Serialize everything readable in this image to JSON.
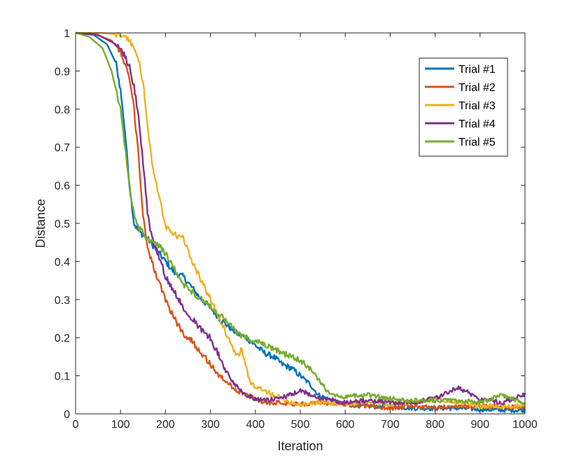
{
  "chart_data": {
    "type": "line",
    "title": "",
    "xlabel": "Iteration",
    "ylabel": "Distance",
    "xlim": [
      0,
      1000
    ],
    "ylim": [
      0,
      1
    ],
    "xticks": [
      0,
      100,
      200,
      300,
      400,
      500,
      600,
      700,
      800,
      900,
      1000
    ],
    "xtick_labels": [
      "0",
      "100",
      "200",
      "300",
      "400",
      "500",
      "600",
      "700",
      "800",
      "900",
      "1000"
    ],
    "yticks": [
      0,
      0.1,
      0.2,
      0.3,
      0.4,
      0.5,
      0.6,
      0.7,
      0.8,
      0.9,
      1
    ],
    "ytick_labels": [
      "0",
      "0.1",
      "0.2",
      "0.3",
      "0.4",
      "0.5",
      "0.6",
      "0.7",
      "0.8",
      "0.9",
      "1"
    ],
    "grid": false,
    "legend_position": "top-right",
    "series": [
      {
        "name": "Trial #1",
        "color": "#0072BD",
        "x": [
          0,
          40,
          70,
          90,
          100,
          110,
          120,
          130,
          140,
          160,
          180,
          200,
          220,
          240,
          260,
          280,
          300,
          320,
          340,
          360,
          380,
          400,
          420,
          440,
          460,
          480,
          500,
          520,
          540,
          560,
          580,
          600,
          650,
          700,
          750,
          800,
          850,
          900,
          950,
          1000
        ],
        "y": [
          1.0,
          0.995,
          0.97,
          0.92,
          0.85,
          0.74,
          0.6,
          0.5,
          0.48,
          0.46,
          0.43,
          0.4,
          0.37,
          0.36,
          0.33,
          0.3,
          0.28,
          0.25,
          0.23,
          0.21,
          0.2,
          0.18,
          0.16,
          0.15,
          0.13,
          0.12,
          0.1,
          0.08,
          0.05,
          0.04,
          0.03,
          0.025,
          0.02,
          0.02,
          0.015,
          0.015,
          0.015,
          0.012,
          0.01,
          0.01
        ]
      },
      {
        "name": "Trial #2",
        "color": "#D95319",
        "x": [
          0,
          40,
          80,
          100,
          120,
          130,
          140,
          150,
          160,
          170,
          180,
          200,
          220,
          240,
          260,
          280,
          300,
          320,
          340,
          360,
          380,
          400,
          420,
          450,
          500,
          550,
          600,
          650,
          700,
          750,
          800,
          850,
          900,
          950,
          1000
        ],
        "y": [
          1.0,
          0.998,
          0.98,
          0.95,
          0.88,
          0.8,
          0.68,
          0.52,
          0.44,
          0.4,
          0.36,
          0.3,
          0.25,
          0.21,
          0.19,
          0.16,
          0.13,
          0.1,
          0.08,
          0.06,
          0.05,
          0.04,
          0.03,
          0.03,
          0.025,
          0.03,
          0.025,
          0.02,
          0.015,
          0.02,
          0.015,
          0.02,
          0.02,
          0.02,
          0.015
        ]
      },
      {
        "name": "Trial #3",
        "color": "#EDB120",
        "x": [
          0,
          60,
          100,
          120,
          130,
          140,
          150,
          160,
          170,
          180,
          190,
          200,
          220,
          240,
          260,
          280,
          300,
          320,
          340,
          360,
          370,
          380,
          390,
          400,
          420,
          440,
          460,
          480,
          500,
          550,
          600,
          650,
          700,
          750,
          800,
          850,
          900,
          950,
          1000
        ],
        "y": [
          1.0,
          1.0,
          0.995,
          0.98,
          0.96,
          0.93,
          0.87,
          0.76,
          0.66,
          0.6,
          0.55,
          0.49,
          0.47,
          0.46,
          0.4,
          0.35,
          0.3,
          0.25,
          0.2,
          0.15,
          0.17,
          0.12,
          0.08,
          0.07,
          0.06,
          0.05,
          0.04,
          0.03,
          0.025,
          0.03,
          0.025,
          0.03,
          0.025,
          0.03,
          0.04,
          0.03,
          0.02,
          0.02,
          0.02
        ]
      },
      {
        "name": "Trial #4",
        "color": "#7E2F8E",
        "x": [
          0,
          50,
          90,
          110,
          120,
          130,
          140,
          150,
          160,
          170,
          180,
          190,
          200,
          220,
          240,
          260,
          280,
          300,
          320,
          340,
          360,
          380,
          400,
          420,
          450,
          480,
          500,
          550,
          600,
          650,
          700,
          750,
          800,
          850,
          900,
          950,
          1000
        ],
        "y": [
          1.0,
          0.995,
          0.97,
          0.94,
          0.91,
          0.86,
          0.78,
          0.66,
          0.53,
          0.46,
          0.43,
          0.4,
          0.36,
          0.32,
          0.28,
          0.25,
          0.22,
          0.2,
          0.15,
          0.1,
          0.07,
          0.05,
          0.04,
          0.035,
          0.04,
          0.05,
          0.06,
          0.04,
          0.03,
          0.035,
          0.03,
          0.03,
          0.04,
          0.07,
          0.04,
          0.03,
          0.05
        ]
      },
      {
        "name": "Trial #5",
        "color": "#77AC30",
        "x": [
          0,
          30,
          60,
          80,
          100,
          110,
          120,
          130,
          140,
          160,
          180,
          200,
          220,
          240,
          260,
          280,
          300,
          320,
          340,
          360,
          380,
          400,
          420,
          440,
          460,
          480,
          500,
          520,
          540,
          560,
          580,
          600,
          650,
          700,
          750,
          800,
          850,
          900,
          950,
          1000
        ],
        "y": [
          1.0,
          0.99,
          0.96,
          0.9,
          0.8,
          0.7,
          0.6,
          0.52,
          0.49,
          0.46,
          0.45,
          0.42,
          0.38,
          0.34,
          0.32,
          0.3,
          0.28,
          0.26,
          0.24,
          0.21,
          0.2,
          0.19,
          0.18,
          0.17,
          0.16,
          0.15,
          0.14,
          0.12,
          0.09,
          0.06,
          0.05,
          0.045,
          0.05,
          0.04,
          0.035,
          0.035,
          0.035,
          0.03,
          0.05,
          0.025
        ]
      }
    ]
  }
}
